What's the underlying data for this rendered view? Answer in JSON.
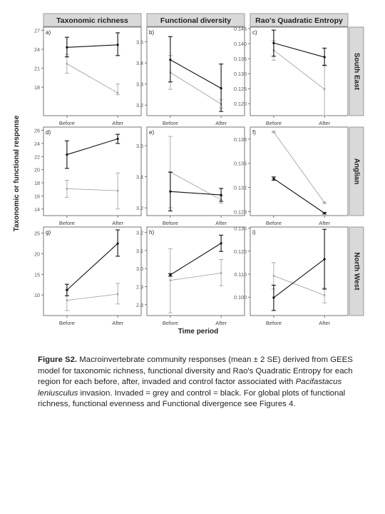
{
  "figure": {
    "y_axis_label": "Taxonomic or functional response",
    "x_axis_label": "Time period",
    "columns": [
      "Taxonomic richness",
      "Functional diversity",
      "Rao's Quadratic Entropy"
    ],
    "rows": [
      "South East",
      "Anglian",
      "North West"
    ],
    "colors": {
      "control": "#111111",
      "invaded": "#9a9a9a",
      "strip": "#d9d9d9",
      "axis": "#555555"
    }
  },
  "caption": {
    "label": "Figure S2.",
    "text1": " Macroinvertebrate community responses (mean ± 2 SE) derived from GEES model for taxonomic richness, functional diversity and Rao's Quadratic Entropy for each region for each before, after, invaded and control factor associated with ",
    "species": "Pacifastacus leniusculus",
    "text2": " invasion. Invaded = grey and control = black. For global plots of functional richness, functional evenness and Functional divergence see Figures 4."
  },
  "chart_data": [
    {
      "type": "line",
      "panel": "a)",
      "row": "South East",
      "column": "Taxonomic richness",
      "categories": [
        "Before",
        "After"
      ],
      "ylim": [
        13.5,
        27.5
      ],
      "ticks": [
        {
          "v": 27,
          "t": "27"
        },
        {
          "v": 24,
          "t": "24"
        },
        {
          "v": 21,
          "t": "21"
        },
        {
          "v": 18,
          "t": "18"
        }
      ],
      "series": [
        {
          "group": "control",
          "values": [
            24.3,
            24.7
          ],
          "lower": [
            22.8,
            23.0
          ],
          "upper": [
            25.9,
            26.6
          ]
        },
        {
          "group": "invaded",
          "values": [
            21.7,
            17.1
          ],
          "lower": [
            20.2,
            16.8
          ],
          "upper": [
            23.2,
            18.5
          ]
        }
      ]
    },
    {
      "type": "line",
      "panel": "b)",
      "row": "South East",
      "column": "Functional diversity",
      "categories": [
        "Before",
        "After"
      ],
      "ylim": [
        3.15,
        3.57
      ],
      "ticks": [
        {
          "v": 3.5,
          "t": "3.5"
        },
        {
          "v": 3.4,
          "t": "3.4"
        },
        {
          "v": 3.3,
          "t": "3.3"
        },
        {
          "v": 3.2,
          "t": "3.2"
        }
      ],
      "series": [
        {
          "group": "control",
          "values": [
            3.415,
            3.28
          ],
          "lower": [
            3.31,
            3.17
          ],
          "upper": [
            3.525,
            3.395
          ]
        },
        {
          "group": "invaded",
          "values": [
            3.355,
            3.205
          ],
          "lower": [
            3.275,
            3.185
          ],
          "upper": [
            3.435,
            3.225
          ]
        }
      ]
    },
    {
      "type": "line",
      "panel": "c)",
      "row": "South East",
      "column": "Rao's Quadratic Entropy",
      "categories": [
        "Before",
        "After"
      ],
      "ylim": [
        0.116,
        0.1455
      ],
      "ticks": [
        {
          "v": 0.145,
          "t": "0.145"
        },
        {
          "v": 0.14,
          "t": "0.140"
        },
        {
          "v": 0.135,
          "t": "0.135"
        },
        {
          "v": 0.13,
          "t": "0.130"
        },
        {
          "v": 0.125,
          "t": "0.125"
        },
        {
          "v": 0.12,
          "t": "0.120"
        }
      ],
      "series": [
        {
          "group": "control",
          "values": [
            0.1402,
            0.1355
          ],
          "lower": [
            0.1358,
            0.1328
          ],
          "upper": [
            0.1445,
            0.1385
          ]
        },
        {
          "group": "invaded",
          "values": [
            0.1378,
            0.1248
          ],
          "lower": [
            0.1345,
            0.116
          ],
          "upper": [
            0.141,
            0.1325
          ]
        }
      ]
    },
    {
      "type": "line",
      "panel": "d)",
      "row": "Anglian",
      "column": "Taxonomic richness",
      "categories": [
        "Before",
        "After"
      ],
      "ylim": [
        13,
        26.5
      ],
      "ticks": [
        {
          "v": 26,
          "t": "26"
        },
        {
          "v": 24,
          "t": "24"
        },
        {
          "v": 22,
          "t": "22"
        },
        {
          "v": 20,
          "t": "20"
        },
        {
          "v": 18,
          "t": "18"
        },
        {
          "v": 16,
          "t": "16"
        },
        {
          "v": 14,
          "t": "14"
        }
      ],
      "series": [
        {
          "group": "control",
          "values": [
            22.3,
            24.7
          ],
          "lower": [
            20.2,
            24.0
          ],
          "upper": [
            24.4,
            25.4
          ]
        },
        {
          "group": "invaded",
          "values": [
            17.1,
            16.8
          ],
          "lower": [
            15.8,
            14.0
          ],
          "upper": [
            18.4,
            19.5
          ]
        }
      ]
    },
    {
      "type": "line",
      "panel": "e)",
      "row": "Anglian",
      "column": "Functional diversity",
      "categories": [
        "Before",
        "After"
      ],
      "ylim": [
        3.15,
        3.72
      ],
      "ticks": [
        {
          "v": 3.6,
          "t": "3.6"
        },
        {
          "v": 3.4,
          "t": "3.4"
        },
        {
          "v": 3.2,
          "t": "3.2"
        }
      ],
      "series": [
        {
          "group": "control",
          "values": [
            3.305,
            3.283
          ],
          "lower": [
            3.18,
            3.242
          ],
          "upper": [
            3.43,
            3.325
          ]
        },
        {
          "group": "invaded",
          "values": [
            3.43,
            3.252
          ],
          "lower": [
            3.2,
            3.23
          ],
          "upper": [
            3.66,
            3.275
          ]
        }
      ]
    },
    {
      "type": "line",
      "panel": "f)",
      "row": "Anglian",
      "column": "Rao's Quadratic Entropy",
      "categories": [
        "Before",
        "After"
      ],
      "ylim": [
        0.1285,
        0.1395
      ],
      "ticks": [
        {
          "v": 0.138,
          "t": "0.138"
        },
        {
          "v": 0.135,
          "t": "0.135"
        },
        {
          "v": 0.132,
          "t": "0.132"
        },
        {
          "v": 0.129,
          "t": "0.129"
        }
      ],
      "series": [
        {
          "group": "control",
          "values": [
            0.1331,
            0.1288
          ],
          "lower": [
            0.1329,
            0.1287
          ],
          "upper": [
            0.1333,
            0.1289
          ]
        },
        {
          "group": "invaded",
          "values": [
            0.1389,
            0.1301
          ],
          "lower": [
            0.1388,
            0.13
          ],
          "upper": [
            0.139,
            0.1302
          ]
        }
      ]
    },
    {
      "type": "line",
      "panel": "g)",
      "row": "North West",
      "column": "Taxonomic richness",
      "categories": [
        "Before",
        "After"
      ],
      "ylim": [
        5,
        26.5
      ],
      "ticks": [
        {
          "v": 25,
          "t": "25"
        },
        {
          "v": 20,
          "t": "20"
        },
        {
          "v": 15,
          "t": "15"
        },
        {
          "v": 10,
          "t": "10"
        }
      ],
      "series": [
        {
          "group": "control",
          "values": [
            11.2,
            22.5
          ],
          "lower": [
            9.8,
            19.4
          ],
          "upper": [
            12.6,
            25.8
          ]
        },
        {
          "group": "invaded",
          "values": [
            8.7,
            10.2
          ],
          "lower": [
            6.2,
            7.8
          ],
          "upper": [
            11.2,
            12.8
          ]
        }
      ]
    },
    {
      "type": "line",
      "panel": "h)",
      "row": "North West",
      "column": "Functional diversity",
      "categories": [
        "Before",
        "After"
      ],
      "ylim": [
        2.74,
        3.23
      ],
      "ticks": [
        {
          "v": 3.2,
          "t": "3.2"
        },
        {
          "v": 3.1,
          "t": "3.1"
        },
        {
          "v": 3.0,
          "t": "3.0"
        },
        {
          "v": 2.9,
          "t": "2.9"
        },
        {
          "v": 2.8,
          "t": "2.8"
        }
      ],
      "series": [
        {
          "group": "control",
          "values": [
            2.965,
            3.14
          ],
          "lower": [
            2.958,
            3.095
          ],
          "upper": [
            2.972,
            3.185
          ]
        },
        {
          "group": "invaded",
          "values": [
            2.935,
            2.975
          ],
          "lower": [
            2.755,
            2.905
          ],
          "upper": [
            3.11,
            3.05
          ]
        }
      ]
    },
    {
      "type": "line",
      "panel": "i)",
      "row": "North West",
      "column": "Rao's Quadratic Entropy",
      "categories": [
        "Before",
        "After"
      ],
      "ylim": [
        0.092,
        0.1305
      ],
      "ticks": [
        {
          "v": 0.13,
          "t": "0.130"
        },
        {
          "v": 0.12,
          "t": "0.120"
        },
        {
          "v": 0.11,
          "t": "0.110"
        },
        {
          "v": 0.1,
          "t": "0.100"
        }
      ],
      "series": [
        {
          "group": "control",
          "values": [
            0.0998,
            0.1165
          ],
          "lower": [
            0.0942,
            0.1035
          ],
          "upper": [
            0.1052,
            0.1295
          ]
        },
        {
          "group": "invaded",
          "values": [
            0.1093,
            0.1008
          ],
          "lower": [
            0.1035,
            0.0975
          ],
          "upper": [
            0.115,
            0.104
          ]
        }
      ]
    }
  ]
}
